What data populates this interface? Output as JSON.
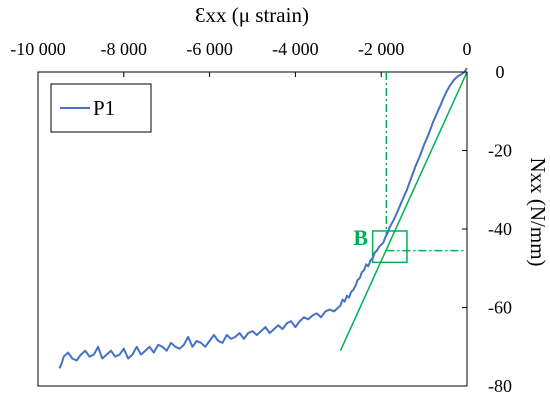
{
  "chart_data": {
    "type": "line",
    "xlabel": "Ɛxx (μ strain)",
    "ylabel": "Nxx (N/mm)",
    "xlim": [
      -10000,
      0
    ],
    "ylim": [
      -80,
      0
    ],
    "x_ticks": [
      -10000,
      -8000,
      -6000,
      -4000,
      -2000,
      0
    ],
    "x_tick_labels": [
      "-10 000",
      "-8 000",
      "-6 000",
      "-4 000",
      "-2 000",
      "0"
    ],
    "y_ticks": [
      0,
      -20,
      -40,
      -60,
      -80
    ],
    "y_tick_labels": [
      "0",
      "-20",
      "-40",
      "-60",
      "-80"
    ],
    "x_axis_position": "top",
    "y_axis_position": "right",
    "grid": false,
    "legend_position": "top-left",
    "series": [
      {
        "name": "P1",
        "color": "#4472C4",
        "x": [
          -9500,
          -9440,
          -9400,
          -9300,
          -9200,
          -9100,
          -9000,
          -8900,
          -8800,
          -8700,
          -8600,
          -8500,
          -8400,
          -8300,
          -8200,
          -8100,
          -8000,
          -7900,
          -7800,
          -7700,
          -7600,
          -7500,
          -7400,
          -7300,
          -7200,
          -7100,
          -7000,
          -6900,
          -6800,
          -6700,
          -6600,
          -6500,
          -6400,
          -6300,
          -6200,
          -6100,
          -6000,
          -5900,
          -5800,
          -5700,
          -5600,
          -5500,
          -5400,
          -5300,
          -5200,
          -5100,
          -5000,
          -4900,
          -4800,
          -4700,
          -4600,
          -4500,
          -4400,
          -4300,
          -4200,
          -4100,
          -4000,
          -3900,
          -3800,
          -3700,
          -3600,
          -3500,
          -3400,
          -3300,
          -3200,
          -3100,
          -3000,
          -2950,
          -2900,
          -2850,
          -2800,
          -2750,
          -2700,
          -2650,
          -2600,
          -2550,
          -2500,
          -2450,
          -2400,
          -2350,
          -2300,
          -2250,
          -2200,
          -2150,
          -2100,
          -2050,
          -2000,
          -1950,
          -1900,
          -1850,
          -1800,
          -1700,
          -1600,
          -1500,
          -1400,
          -1300,
          -1200,
          -1100,
          -1000,
          -900,
          -800,
          -700,
          -600,
          -500,
          -400,
          -300,
          -200,
          -120,
          -60,
          0
        ],
        "y": [
          -75.5,
          -74.0,
          -72.5,
          -71.5,
          -73.0,
          -73.5,
          -72.0,
          -71.0,
          -72.5,
          -72.0,
          -70.0,
          -73.0,
          -72.0,
          -71.0,
          -72.5,
          -72.0,
          -70.5,
          -73.0,
          -72.0,
          -70.0,
          -72.0,
          -71.0,
          -70.0,
          -71.5,
          -69.5,
          -70.0,
          -71.0,
          -69.0,
          -70.0,
          -70.5,
          -69.5,
          -67.5,
          -70.0,
          -68.5,
          -69.0,
          -70.0,
          -68.5,
          -67.0,
          -68.5,
          -69.0,
          -67.0,
          -68.0,
          -67.5,
          -66.5,
          -68.0,
          -66.5,
          -66.0,
          -67.0,
          -66.0,
          -65.0,
          -66.5,
          -65.5,
          -64.5,
          -65.5,
          -64.0,
          -63.5,
          -65.0,
          -63.5,
          -62.5,
          -63.0,
          -62.0,
          -61.5,
          -62.5,
          -61.0,
          -60.5,
          -61.0,
          -60.0,
          -59.5,
          -58.0,
          -58.5,
          -57.0,
          -57.5,
          -56.0,
          -55.5,
          -54.5,
          -53.0,
          -52.5,
          -51.0,
          -50.5,
          -49.0,
          -49.5,
          -48.0,
          -47.5,
          -46.0,
          -45.5,
          -44.5,
          -44.0,
          -43.5,
          -42.0,
          -41.0,
          -39.5,
          -37.5,
          -35.0,
          -32.5,
          -30.0,
          -27.0,
          -24.0,
          -21.5,
          -18.5,
          -16.0,
          -13.0,
          -10.5,
          -8.0,
          -5.5,
          -3.5,
          -2.0,
          -1.0,
          -0.5,
          0.0,
          1.0
        ]
      }
    ],
    "overlays": {
      "tangent_line": {
        "color": "#00B050",
        "x": [
          0,
          -2950
        ],
        "y": [
          0,
          -71
        ]
      },
      "vertical_dashdot": {
        "color": "#00B050",
        "x": -1880,
        "y_from": 0,
        "y_to": -42
      },
      "horizontal_dashdot": {
        "color": "#00B050",
        "y": -45.5,
        "x_from": -1880,
        "x_to": 0
      },
      "box": {
        "color": "#00B050",
        "x1": -2200,
        "x2": -1400,
        "y1": -40.5,
        "y2": -48.5
      }
    },
    "annotations": [
      {
        "text": "B",
        "color": "#00B050",
        "x": -2650,
        "y": -42
      }
    ]
  }
}
